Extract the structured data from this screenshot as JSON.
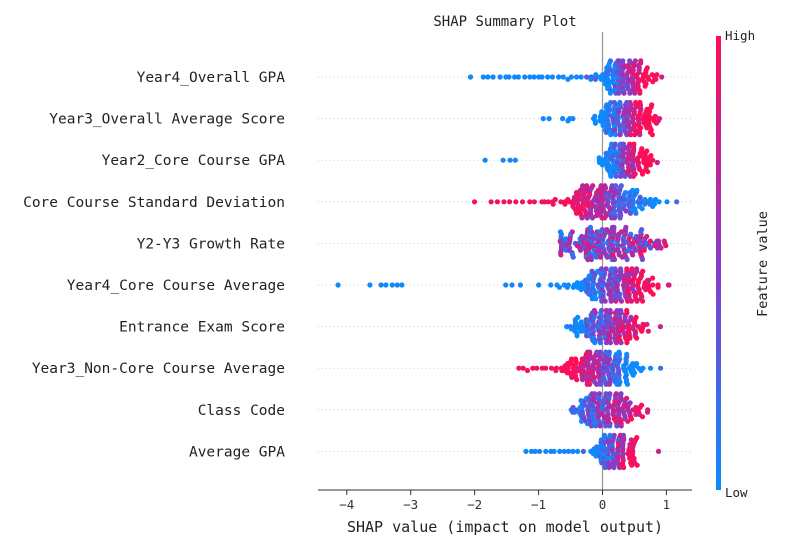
{
  "chart_data": {
    "type": "scatter",
    "subtype": "shap-beeswarm",
    "title": "SHAP Summary Plot",
    "xlabel": "SHAP value (impact on model output)",
    "xlim": [
      -4.45,
      1.4
    ],
    "xticks": [
      -4,
      -3,
      -2,
      -1,
      0,
      1
    ],
    "xtick_labels": [
      "−4",
      "−3",
      "−2",
      "−1",
      "0",
      "1"
    ],
    "colorbar": {
      "label": "Feature value",
      "high_label": "High",
      "low_label": "Low",
      "low_color": "#0a8cff",
      "mid_color": "#8a3ac8",
      "high_color": "#ff0d57"
    },
    "features": [
      {
        "name": "Year4_Overall GPA",
        "min": -2.05,
        "max": 0.92,
        "center": 0.35,
        "spread": 0.2,
        "bias": 0.55,
        "outliers": [
          -2.05,
          -1.85,
          -1.78,
          -1.7,
          -1.6,
          -1.52,
          -1.45,
          -1.38,
          -1.3,
          -1.22,
          -1.15,
          -1.08,
          -1.0,
          -0.93,
          -0.85,
          -0.78,
          -0.7,
          -0.62,
          -0.55,
          -0.48,
          -0.4,
          -0.32,
          -0.25,
          -0.18,
          -0.1
        ]
      },
      {
        "name": "Year3_Overall Average Score",
        "min": -0.95,
        "max": 0.88,
        "center": 0.35,
        "spread": 0.22,
        "bias": 0.6,
        "outliers": [
          -0.92,
          -0.85,
          -0.62,
          -0.55,
          -0.5,
          -0.45
        ]
      },
      {
        "name": "Year2_Core Course GPA",
        "min": -1.85,
        "max": 0.85,
        "center": 0.35,
        "spread": 0.18,
        "bias": 0.6,
        "outliers": [
          -1.83,
          -1.55,
          -1.45,
          -1.35
        ]
      },
      {
        "name": "Core Course Standard Deviation",
        "min": -2.0,
        "max": 1.15,
        "center": 0.1,
        "spread": 0.35,
        "bias": -0.5,
        "outliers": [
          -2.0,
          -1.75,
          -1.65,
          -1.55,
          -1.45,
          -1.35,
          -1.25,
          -1.15,
          -1.05,
          -0.95,
          -0.9,
          -0.85,
          -0.75,
          -0.65,
          -0.6,
          -0.55,
          -0.45,
          -0.4
        ]
      },
      {
        "name": "Y2-Y3 Growth Rate",
        "min": -0.8,
        "max": 0.98,
        "center": 0.1,
        "spread": 0.4,
        "bias": 0.05,
        "outliers": []
      },
      {
        "name": "Year4_Core Course Average",
        "min": -4.15,
        "max": 1.05,
        "center": 0.2,
        "spread": 0.3,
        "bias": 0.5,
        "outliers": [
          -4.15,
          -3.65,
          -3.45,
          -3.38,
          -3.3,
          -3.22,
          -3.15,
          -1.52,
          -1.4,
          -1.28,
          -1.0,
          -0.8,
          -0.7,
          -0.55,
          -0.45
        ]
      },
      {
        "name": "Entrance Exam Score",
        "min": -0.85,
        "max": 0.9,
        "center": 0.1,
        "spread": 0.3,
        "bias": 0.45,
        "outliers": []
      },
      {
        "name": "Year3_Non-Core Course Average",
        "min": -1.35,
        "max": 0.92,
        "center": 0.0,
        "spread": 0.28,
        "bias": -0.55,
        "outliers": [
          -1.32,
          -1.25,
          -1.18,
          -1.1,
          -1.02,
          -0.95,
          -0.88,
          -0.8,
          -0.72,
          -0.65,
          -0.58,
          -0.5,
          -0.42
        ]
      },
      {
        "name": "Class Code",
        "min": -1.15,
        "max": 0.7,
        "center": 0.05,
        "spread": 0.25,
        "bias": 0.3,
        "outliers": []
      },
      {
        "name": "Average GPA",
        "min": -1.2,
        "max": 0.88,
        "center": 0.2,
        "spread": 0.15,
        "bias": 0.45,
        "outliers": [
          -1.2,
          -1.12,
          -1.05,
          -0.98,
          -0.9,
          -0.82,
          -0.75,
          -0.68,
          -0.6,
          -0.52,
          -0.45,
          -0.38,
          -0.3
        ]
      }
    ]
  }
}
